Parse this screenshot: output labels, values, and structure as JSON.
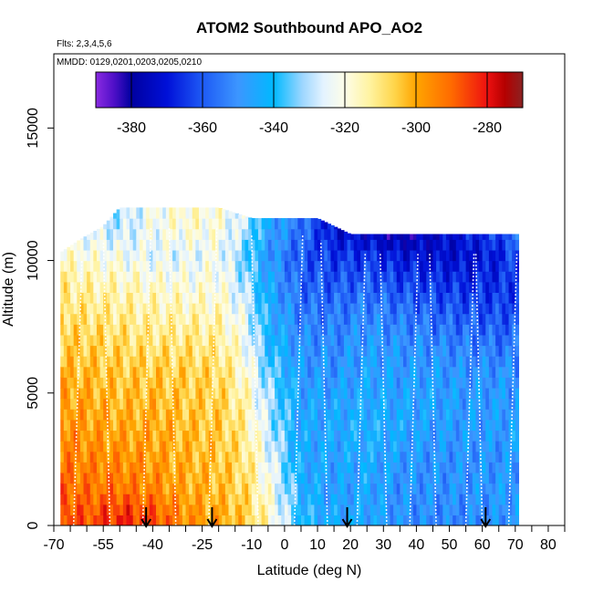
{
  "chart_data": {
    "type": "heatmap",
    "title": "ATOM2 Southbound APO_AO2",
    "subtitle_flights": "Flts: 2,3,4,5,6",
    "subtitle_dates": "MMDD: 0129,0201,0203,0205,0210",
    "xlabel": "Latitude (deg N)",
    "ylabel": "Altitude (m)",
    "xlim": [
      -70,
      85
    ],
    "ylim": [
      0,
      17800
    ],
    "x_ticks": [
      -70,
      -55,
      -40,
      -25,
      -10,
      0,
      10,
      20,
      30,
      40,
      50,
      60,
      70,
      80
    ],
    "x_tick_labels": [
      "-70",
      "-55",
      "-40",
      "-25",
      "-10",
      "0",
      "10",
      "20",
      "30",
      "40",
      "50",
      "60",
      "70",
      "80"
    ],
    "x_minor_ticks": [
      -65,
      -60,
      -50,
      -45,
      -35,
      -30,
      -20,
      -15,
      -5,
      5,
      15,
      25,
      35,
      45,
      55,
      65,
      75,
      85
    ],
    "y_ticks": [
      0,
      5000,
      10000,
      15000
    ],
    "y_tick_labels": [
      "0",
      "5000",
      "10000",
      "15000"
    ],
    "colorbar": {
      "min": -390,
      "max": -270,
      "ticks": [
        -380,
        -360,
        -340,
        -320,
        -300,
        -280
      ],
      "tick_labels": [
        "-380",
        "-360",
        "-340",
        "-320",
        "-300",
        "-280"
      ],
      "stops": [
        {
          "value": -390,
          "color": "#8a2be2"
        },
        {
          "value": -385,
          "color": "#5010c8"
        },
        {
          "value": -380,
          "color": "#0000a0"
        },
        {
          "value": -370,
          "color": "#0010d8"
        },
        {
          "value": -360,
          "color": "#1e5af5"
        },
        {
          "value": -350,
          "color": "#3c96ff"
        },
        {
          "value": -340,
          "color": "#00b9ff"
        },
        {
          "value": -332,
          "color": "#9cd6ff"
        },
        {
          "value": -326,
          "color": "#e4f3ff"
        },
        {
          "value": -320,
          "color": "#fdfde8"
        },
        {
          "value": -313,
          "color": "#fff3a0"
        },
        {
          "value": -306,
          "color": "#ffd54a"
        },
        {
          "value": -300,
          "color": "#ffa500"
        },
        {
          "value": -290,
          "color": "#ff6a00"
        },
        {
          "value": -280,
          "color": "#ee1010"
        },
        {
          "value": -275,
          "color": "#b40000"
        },
        {
          "value": -270,
          "color": "#8b2222"
        }
      ]
    },
    "data_x_range": [
      -68,
      71
    ],
    "top_profile": {
      "lat": [
        -68,
        -62,
        -55,
        -50,
        -40,
        -30,
        -20,
        -10,
        0,
        10,
        20,
        30,
        40,
        50,
        60,
        70
      ],
      "alt": [
        10300,
        10800,
        11300,
        12000,
        12000,
        12000,
        12000,
        11600,
        11600,
        11600,
        11000,
        11000,
        11000,
        11000,
        11000,
        11000
      ]
    },
    "field_columns": [
      {
        "lat": -68,
        "values": [
          -285,
          -290,
          -293,
          -295,
          -298,
          -302,
          -305,
          -308,
          -312,
          -318,
          -330
        ]
      },
      {
        "lat": -60,
        "values": [
          -288,
          -292,
          -295,
          -298,
          -300,
          -303,
          -306,
          -310,
          -314,
          -320,
          -326
        ]
      },
      {
        "lat": -50,
        "values": [
          -282,
          -292,
          -296,
          -300,
          -303,
          -305,
          -308,
          -312,
          -316,
          -322,
          -330
        ]
      },
      {
        "lat": -40,
        "values": [
          -286,
          -295,
          -298,
          -300,
          -302,
          -305,
          -310,
          -314,
          -318,
          -325,
          -322
        ]
      },
      {
        "lat": -30,
        "values": [
          -296,
          -300,
          -302,
          -303,
          -305,
          -306,
          -310,
          -315,
          -320,
          -325,
          -318
        ]
      },
      {
        "lat": -20,
        "values": [
          -300,
          -303,
          -304,
          -305,
          -306,
          -308,
          -312,
          -316,
          -320,
          -322,
          -320
        ]
      },
      {
        "lat": -12,
        "values": [
          -305,
          -308,
          -310,
          -312,
          -315,
          -318,
          -322,
          -325,
          -330,
          -335,
          -328
        ]
      },
      {
        "lat": -5,
        "values": [
          -316,
          -320,
          -323,
          -328,
          -330,
          -334,
          -340,
          -342,
          -345,
          -348,
          -345
        ]
      },
      {
        "lat": 5,
        "values": [
          -340,
          -342,
          -345,
          -345,
          -346,
          -348,
          -350,
          -355,
          -358,
          -360,
          -355
        ]
      },
      {
        "lat": 15,
        "values": [
          -345,
          -348,
          -346,
          -345,
          -346,
          -350,
          -352,
          -355,
          -360,
          -365,
          -372
        ]
      },
      {
        "lat": 25,
        "values": [
          -345,
          -345,
          -344,
          -342,
          -344,
          -346,
          -348,
          -352,
          -358,
          -365,
          -378
        ]
      },
      {
        "lat": 35,
        "values": [
          -350,
          -350,
          -348,
          -345,
          -346,
          -348,
          -350,
          -355,
          -362,
          -370,
          -385
        ]
      },
      {
        "lat": 45,
        "values": [
          -352,
          -350,
          -350,
          -348,
          -346,
          -348,
          -352,
          -358,
          -364,
          -372,
          -376
        ]
      },
      {
        "lat": 55,
        "values": [
          -352,
          -350,
          -350,
          -348,
          -348,
          -350,
          -354,
          -360,
          -366,
          -372,
          -368
        ]
      },
      {
        "lat": 65,
        "values": [
          -350,
          -348,
          -350,
          -348,
          -348,
          -350,
          -356,
          -362,
          -366,
          -368,
          -360
        ]
      },
      {
        "lat": 71,
        "values": [
          -348,
          -348,
          -348,
          -346,
          -348,
          -350,
          -356,
          -360,
          -364,
          -360,
          -355
        ]
      }
    ],
    "field_altitudes": [
      300,
      1400,
      2500,
      3600,
      4700,
      5800,
      6900,
      8000,
      9100,
      10200,
      11300
    ],
    "flight_profile_lats": [
      -64,
      -53,
      -43,
      -33,
      -23,
      -8,
      3,
      13,
      22,
      31,
      38,
      46,
      55,
      60,
      68
    ],
    "arrows_lat": [
      -42,
      -22,
      19,
      61
    ]
  }
}
